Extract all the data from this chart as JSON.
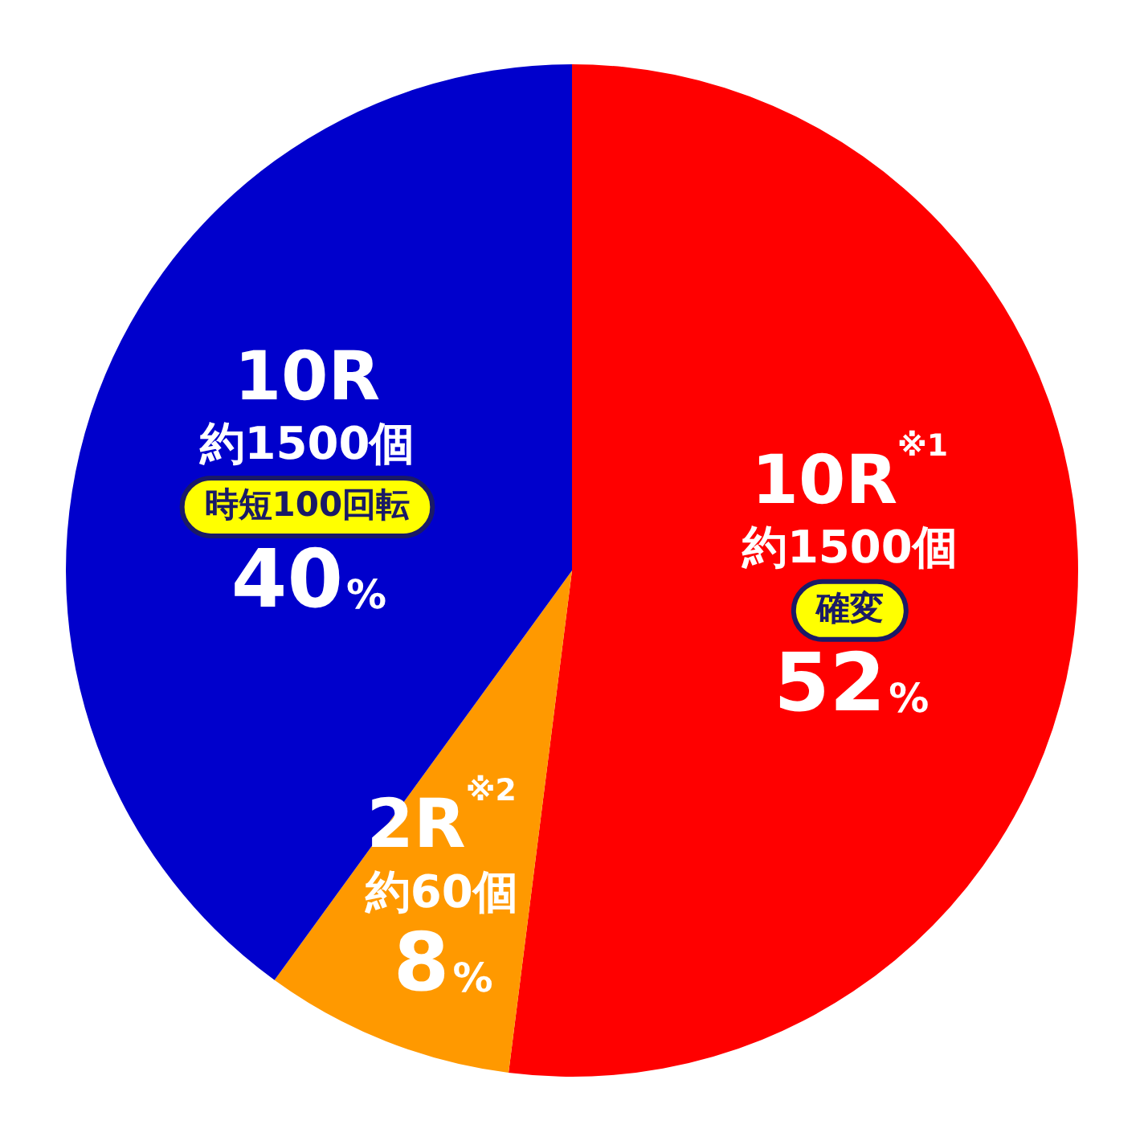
{
  "chart_data": {
    "type": "pie",
    "categories": [
      "10R$^{※1}$\n約1500個",
      "2R$^{※2}$\n約60個",
      "10R\n約1500個"
    ],
    "values": [
      52,
      8,
      40
    ],
    "value_labels": [
      "52%",
      "8%",
      "40%"
    ],
    "colors": [
      "#ff0000",
      "#ff9900",
      "#0000cc"
    ],
    "annotations": [
      {
        "text": "確変",
        "x": "10R$^{※1}$\n約1500個"
      },
      {
        "text": "時短100回転",
        "x": "10R\n約1500個"
      }
    ],
    "legend": false
  }
}
